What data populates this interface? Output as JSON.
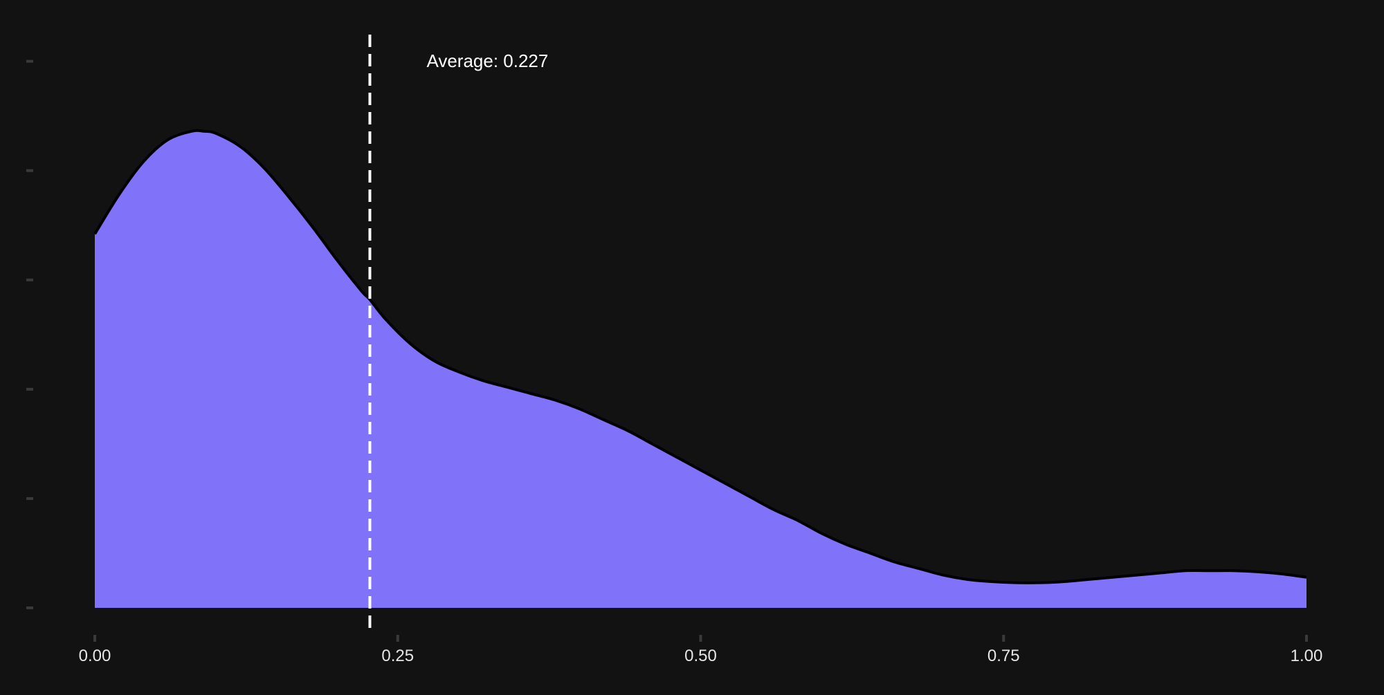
{
  "chart_data": {
    "type": "area",
    "title": "",
    "xlabel": "",
    "ylabel": "",
    "xlim": [
      0,
      1
    ],
    "ylim": [
      0,
      2.6
    ],
    "x_ticks": [
      "0.00",
      "0.25",
      "0.50",
      "0.75",
      "1.00"
    ],
    "x_tick_values": [
      0,
      0.25,
      0.5,
      0.75,
      1.0
    ],
    "y_tick_values": [
      0,
      0.5,
      1.0,
      1.5,
      2.0,
      2.5
    ],
    "y_tick_labels_visible": false,
    "grid": false,
    "legend": "none",
    "series": [
      {
        "x": [
          0.0,
          0.02,
          0.04,
          0.06,
          0.08,
          0.09,
          0.1,
          0.12,
          0.14,
          0.16,
          0.18,
          0.2,
          0.22,
          0.227,
          0.24,
          0.26,
          0.28,
          0.3,
          0.32,
          0.34,
          0.36,
          0.38,
          0.4,
          0.42,
          0.44,
          0.46,
          0.48,
          0.5,
          0.52,
          0.54,
          0.56,
          0.58,
          0.6,
          0.62,
          0.64,
          0.66,
          0.68,
          0.7,
          0.72,
          0.74,
          0.76,
          0.78,
          0.8,
          0.82,
          0.84,
          0.86,
          0.88,
          0.9,
          0.92,
          0.94,
          0.96,
          0.98,
          1.0
        ],
        "y": [
          1.71,
          1.89,
          2.04,
          2.14,
          2.18,
          2.18,
          2.17,
          2.11,
          2.01,
          1.88,
          1.74,
          1.59,
          1.45,
          1.41,
          1.32,
          1.21,
          1.13,
          1.08,
          1.04,
          1.01,
          0.98,
          0.95,
          0.91,
          0.86,
          0.81,
          0.75,
          0.69,
          0.63,
          0.57,
          0.51,
          0.45,
          0.4,
          0.34,
          0.29,
          0.25,
          0.21,
          0.18,
          0.15,
          0.13,
          0.12,
          0.115,
          0.115,
          0.12,
          0.13,
          0.14,
          0.15,
          0.16,
          0.17,
          0.17,
          0.17,
          0.165,
          0.155,
          0.14
        ]
      }
    ],
    "annotations": [
      {
        "type": "vline",
        "x": 0.227,
        "style": "dashed",
        "color": "#ffffff"
      },
      {
        "type": "text",
        "text": "Average: 0.227"
      }
    ]
  },
  "colors": {
    "background": "#121212",
    "fill": "#8172fa",
    "outline": "#000000",
    "tick_mark": "#3a3a3a",
    "tick_label": "#e6e6e6",
    "avg_line": "#ffffff"
  }
}
